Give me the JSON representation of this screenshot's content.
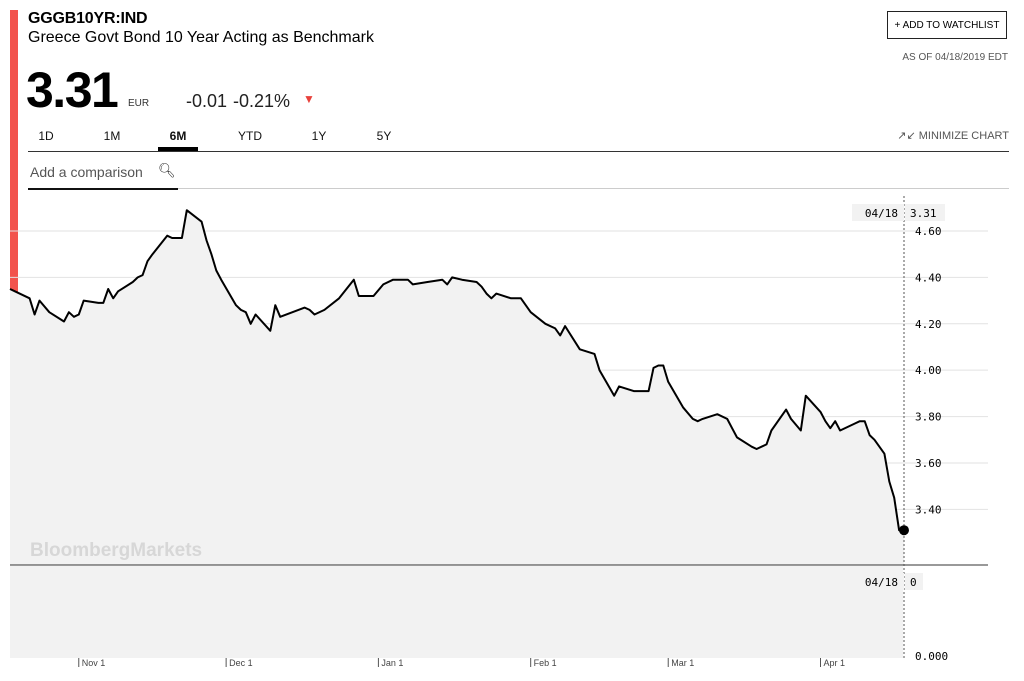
{
  "header": {
    "ticker": "GGGB10YR:IND",
    "name": "Greece Govt Bond 10 Year Acting as Benchmark",
    "watchlist_label": "+ ADD TO WATCHLIST",
    "as_of": "AS OF 04/18/2019 EDT"
  },
  "quote": {
    "price": "3.31",
    "currency": "EUR",
    "change": "-0.01",
    "change_pct": "-0.21%",
    "direction": "down"
  },
  "tabs": [
    {
      "label": "1D",
      "active": false
    },
    {
      "label": "1M",
      "active": false
    },
    {
      "label": "6M",
      "active": true
    },
    {
      "label": "YTD",
      "active": false
    },
    {
      "label": "1Y",
      "active": false
    },
    {
      "label": "5Y",
      "active": false
    }
  ],
  "minimize_label": "MINIMIZE CHART",
  "compare": {
    "placeholder": "Add a comparison"
  },
  "watermark": "BloombergMarkets",
  "colors": {
    "accent": "#f2534d",
    "line": "#000000",
    "fill": "#f2f2f2",
    "down": "#e8413b",
    "grid": "#e2e2e2"
  },
  "chart_data": [
    {
      "type": "area",
      "ylim": [
        3.16,
        4.82
      ],
      "y_ticks": [
        3.4,
        3.6,
        3.8,
        4.0,
        4.2,
        4.4,
        4.6
      ],
      "y_tick_labels": [
        "3.40",
        "3.60",
        "3.80",
        "4.00",
        "4.20",
        "4.40",
        "4.60"
      ],
      "x_range": [
        "2018-10-18",
        "2019-04-18"
      ],
      "x_ticks": [
        {
          "date": "2018-11-01",
          "label": "Nov 1"
        },
        {
          "date": "2018-12-01",
          "label": "Dec 1"
        },
        {
          "date": "2019-01-01",
          "label": "Jan 1"
        },
        {
          "date": "2019-02-01",
          "label": "Feb 1"
        },
        {
          "date": "2019-03-01",
          "label": "Mar 1"
        },
        {
          "date": "2019-04-01",
          "label": "Apr 1"
        }
      ],
      "crosshair": {
        "date_label": "04/18",
        "value_label": "3.31"
      },
      "series": [
        {
          "points": [
            [
              "2018-10-18",
              4.35
            ],
            [
              "2018-10-19",
              4.34
            ],
            [
              "2018-10-22",
              4.31
            ],
            [
              "2018-10-23",
              4.24
            ],
            [
              "2018-10-24",
              4.3
            ],
            [
              "2018-10-26",
              4.25
            ],
            [
              "2018-10-29",
              4.21
            ],
            [
              "2018-10-30",
              4.25
            ],
            [
              "2018-10-31",
              4.23
            ],
            [
              "2018-11-01",
              4.24
            ],
            [
              "2018-11-02",
              4.3
            ],
            [
              "2018-11-05",
              4.29
            ],
            [
              "2018-11-06",
              4.29
            ],
            [
              "2018-11-07",
              4.35
            ],
            [
              "2018-11-08",
              4.31
            ],
            [
              "2018-11-09",
              4.34
            ],
            [
              "2018-11-12",
              4.38
            ],
            [
              "2018-11-13",
              4.4
            ],
            [
              "2018-11-14",
              4.41
            ],
            [
              "2018-11-15",
              4.47
            ],
            [
              "2018-11-16",
              4.5
            ],
            [
              "2018-11-19",
              4.58
            ],
            [
              "2018-11-20",
              4.57
            ],
            [
              "2018-11-21",
              4.57
            ],
            [
              "2018-11-22",
              4.57
            ],
            [
              "2018-11-23",
              4.69
            ],
            [
              "2018-11-26",
              4.64
            ],
            [
              "2018-11-27",
              4.56
            ],
            [
              "2018-11-28",
              4.5
            ],
            [
              "2018-11-29",
              4.43
            ],
            [
              "2018-11-30",
              4.39
            ],
            [
              "2018-12-03",
              4.28
            ],
            [
              "2018-12-04",
              4.26
            ],
            [
              "2018-12-05",
              4.25
            ],
            [
              "2018-12-06",
              4.2
            ],
            [
              "2018-12-07",
              4.24
            ],
            [
              "2018-12-10",
              4.17
            ],
            [
              "2018-12-11",
              4.28
            ],
            [
              "2018-12-12",
              4.23
            ],
            [
              "2018-12-17",
              4.27
            ],
            [
              "2018-12-18",
              4.26
            ],
            [
              "2018-12-19",
              4.24
            ],
            [
              "2018-12-21",
              4.26
            ],
            [
              "2018-12-24",
              4.31
            ],
            [
              "2018-12-27",
              4.39
            ],
            [
              "2018-12-28",
              4.32
            ],
            [
              "2018-12-31",
              4.32
            ],
            [
              "2019-01-02",
              4.37
            ],
            [
              "2019-01-04",
              4.39
            ],
            [
              "2019-01-07",
              4.39
            ],
            [
              "2019-01-08",
              4.37
            ],
            [
              "2019-01-11",
              4.38
            ],
            [
              "2019-01-14",
              4.39
            ],
            [
              "2019-01-15",
              4.37
            ],
            [
              "2019-01-16",
              4.4
            ],
            [
              "2019-01-18",
              4.39
            ],
            [
              "2019-01-21",
              4.38
            ],
            [
              "2019-01-22",
              4.36
            ],
            [
              "2019-01-23",
              4.33
            ],
            [
              "2019-01-24",
              4.31
            ],
            [
              "2019-01-25",
              4.33
            ],
            [
              "2019-01-28",
              4.31
            ],
            [
              "2019-01-30",
              4.31
            ],
            [
              "2019-02-01",
              4.25
            ],
            [
              "2019-02-04",
              4.2
            ],
            [
              "2019-02-06",
              4.18
            ],
            [
              "2019-02-07",
              4.15
            ],
            [
              "2019-02-08",
              4.19
            ],
            [
              "2019-02-11",
              4.09
            ],
            [
              "2019-02-14",
              4.07
            ],
            [
              "2019-02-15",
              4.0
            ],
            [
              "2019-02-18",
              3.89
            ],
            [
              "2019-02-19",
              3.93
            ],
            [
              "2019-02-22",
              3.91
            ],
            [
              "2019-02-25",
              3.91
            ],
            [
              "2019-02-26",
              4.01
            ],
            [
              "2019-02-27",
              4.02
            ],
            [
              "2019-02-28",
              4.02
            ],
            [
              "2019-03-01",
              3.95
            ],
            [
              "2019-03-04",
              3.84
            ],
            [
              "2019-03-06",
              3.79
            ],
            [
              "2019-03-07",
              3.78
            ],
            [
              "2019-03-08",
              3.79
            ],
            [
              "2019-03-11",
              3.81
            ],
            [
              "2019-03-13",
              3.79
            ],
            [
              "2019-03-14",
              3.75
            ],
            [
              "2019-03-15",
              3.71
            ],
            [
              "2019-03-18",
              3.67
            ],
            [
              "2019-03-19",
              3.66
            ],
            [
              "2019-03-21",
              3.68
            ],
            [
              "2019-03-22",
              3.74
            ],
            [
              "2019-03-25",
              3.83
            ],
            [
              "2019-03-26",
              3.79
            ],
            [
              "2019-03-28",
              3.74
            ],
            [
              "2019-03-29",
              3.89
            ],
            [
              "2019-04-01",
              3.82
            ],
            [
              "2019-04-02",
              3.78
            ],
            [
              "2019-04-03",
              3.75
            ],
            [
              "2019-04-04",
              3.78
            ],
            [
              "2019-04-05",
              3.74
            ],
            [
              "2019-04-08",
              3.77
            ],
            [
              "2019-04-09",
              3.78
            ],
            [
              "2019-04-10",
              3.78
            ],
            [
              "2019-04-11",
              3.72
            ],
            [
              "2019-04-12",
              3.7
            ],
            [
              "2019-04-14",
              3.64
            ],
            [
              "2019-04-15",
              3.52
            ],
            [
              "2019-04-16",
              3.45
            ],
            [
              "2019-04-17",
              3.31
            ],
            [
              "2019-04-18",
              3.31
            ]
          ]
        }
      ]
    },
    {
      "type": "bar",
      "ylim": [
        0,
        1
      ],
      "y_ticks": [
        0
      ],
      "y_tick_labels": [
        "0.000"
      ],
      "crosshair": {
        "date_label": "04/18",
        "value_label": "0"
      },
      "values": []
    }
  ]
}
